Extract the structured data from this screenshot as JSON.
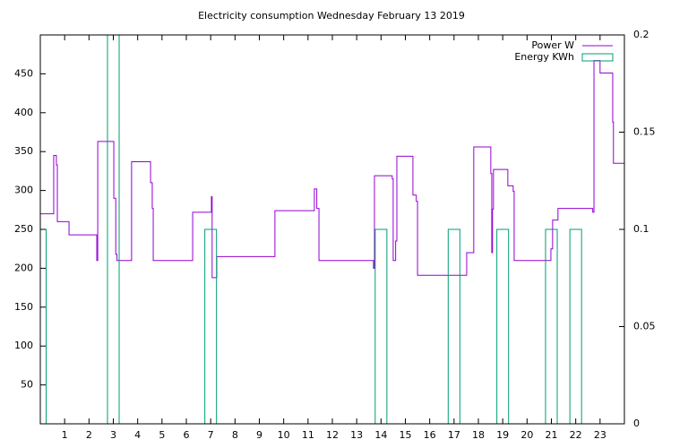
{
  "chart_data": {
    "type": "line",
    "title": "Electricity consumption Wednesday February 13 2019",
    "xlim": [
      0,
      24
    ],
    "xticks": [
      1,
      2,
      3,
      4,
      5,
      6,
      7,
      8,
      9,
      10,
      11,
      12,
      13,
      14,
      15,
      16,
      17,
      18,
      19,
      20,
      21,
      22,
      23
    ],
    "ylim": [
      0,
      500
    ],
    "yticks": [
      50,
      100,
      150,
      200,
      250,
      300,
      350,
      400,
      450
    ],
    "y2lim": [
      0,
      0.2
    ],
    "y2ticks": [
      0,
      0.05,
      0.1,
      0.15,
      0.2
    ],
    "legend": "top-right",
    "series": [
      {
        "name": "Power W",
        "type": "steps",
        "color": "#9400d3",
        "x": [
          0,
          0.55,
          0.66,
          0.7,
          1.18,
          2.32,
          2.36,
          3.02,
          3.1,
          3.15,
          3.75,
          4.53,
          4.6,
          4.64,
          6.26,
          7.03,
          7.06,
          7.25,
          9.64,
          11.26,
          11.36,
          11.45,
          13.69,
          13.73,
          14.46,
          14.5,
          14.6,
          14.65,
          15.31,
          15.45,
          15.5,
          17.52,
          17.81,
          18.51,
          18.55,
          18.58,
          18.62,
          19.21,
          19.43,
          19.47,
          20.98,
          21.05,
          21.27,
          22.7,
          22.75,
          23.0,
          23.52,
          23.55,
          24
        ],
        "values": [
          270,
          345,
          333,
          260,
          243,
          210,
          363,
          290,
          218,
          210,
          337,
          310,
          277,
          210,
          272,
          292,
          188,
          215,
          274,
          302,
          277,
          210,
          200,
          319,
          315,
          210,
          235,
          344,
          294,
          286,
          191,
          220,
          356,
          322,
          220,
          276,
          327,
          306,
          299,
          210,
          225,
          262,
          277,
          272,
          467,
          451,
          388,
          335,
          335
        ]
      },
      {
        "name": "Energy KWh",
        "type": "boxes",
        "color": "#009e73",
        "axis": "y2",
        "x": [
          0,
          3,
          7,
          14,
          17,
          19,
          21,
          22
        ],
        "values": [
          0.1,
          0.2,
          0.1,
          0.1,
          0.1,
          0.1,
          0.1,
          0.1
        ]
      }
    ]
  }
}
